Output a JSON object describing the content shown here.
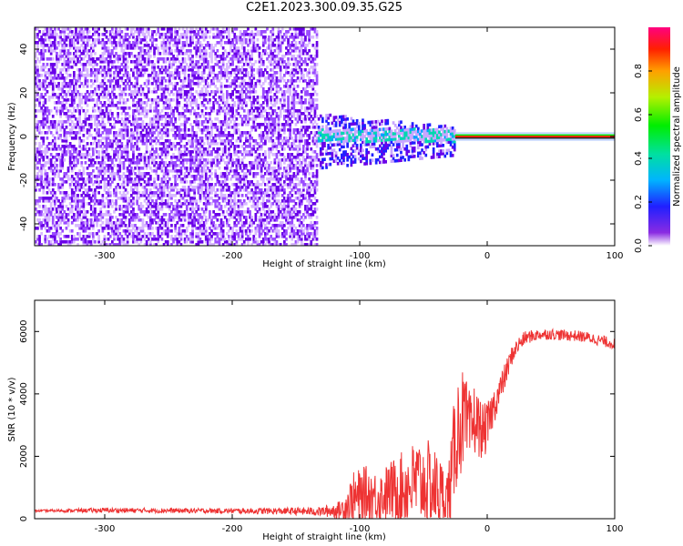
{
  "title": "C2E1.2023.300.09.35.G25",
  "chart_data": [
    {
      "type": "heatmap",
      "xlabel": "Height of straight line (km)",
      "ylabel": "Frequency (Hz)",
      "xlim": [
        -355,
        100
      ],
      "ylim": [
        -50,
        50
      ],
      "x_ticks": [
        -300,
        -200,
        -100,
        0,
        100
      ],
      "y_ticks": [
        -40,
        -20,
        0,
        20,
        40
      ],
      "colorbar": {
        "label": "Normalized spectral amplitude",
        "range": [
          0,
          1
        ],
        "ticks": [
          "0.0",
          "0.2",
          "0.4",
          "0.6",
          "0.8"
        ]
      },
      "regions": [
        {
          "x": [
            -355,
            -133
          ],
          "freq_spread": [
            -50,
            50
          ],
          "amplitude": "low (0.0-0.2)"
        },
        {
          "x": [
            -133,
            -25
          ],
          "freq_spread": [
            -15,
            10
          ],
          "amplitude": "moderate (0.1-0.5)"
        },
        {
          "x": [
            -25,
            100
          ],
          "freq_spread": [
            -1,
            1
          ],
          "amplitude": "high (0.8-1.0) at 0 Hz"
        }
      ]
    },
    {
      "type": "line",
      "xlabel": "Height of straight line (km)",
      "ylabel": "SNR (10 * v/v)",
      "xlim": [
        -355,
        100
      ],
      "ylim": [
        0,
        7000
      ],
      "x_ticks": [
        -300,
        -200,
        -100,
        0,
        100
      ],
      "y_ticks": [
        0,
        2000,
        4000,
        6000
      ],
      "series": [
        {
          "color": "#ee3333",
          "x": [
            -355,
            -300,
            -250,
            -200,
            -150,
            -130,
            -115,
            -105,
            -95,
            -85,
            -75,
            -65,
            -55,
            -45,
            -38,
            -32,
            -28,
            -25,
            -22,
            -19,
            -16,
            -13,
            -10,
            -7,
            -4,
            0,
            5,
            10,
            15,
            20,
            25,
            30,
            40,
            50,
            60,
            70,
            80,
            90,
            100
          ],
          "y": [
            250,
            270,
            260,
            250,
            240,
            230,
            280,
            600,
            800,
            700,
            900,
            1000,
            1200,
            1000,
            900,
            600,
            1200,
            2600,
            3000,
            3200,
            2900,
            2700,
            3200,
            3000,
            2800,
            2900,
            3600,
            4100,
            4700,
            5300,
            5600,
            5800,
            5900,
            5920,
            5880,
            5860,
            5800,
            5700,
            5600
          ],
          "envelope": [
            30,
            80,
            80,
            80,
            120,
            150,
            300,
            900,
            900,
            800,
            1000,
            1200,
            1400,
            1500,
            1200,
            900,
            1500,
            1800,
            1800,
            1600,
            1500,
            1300,
            1200,
            1000,
            900,
            800,
            600,
            500,
            400,
            300,
            250,
            220,
            180,
            180,
            180,
            180,
            180,
            180,
            180
          ]
        }
      ]
    }
  ]
}
